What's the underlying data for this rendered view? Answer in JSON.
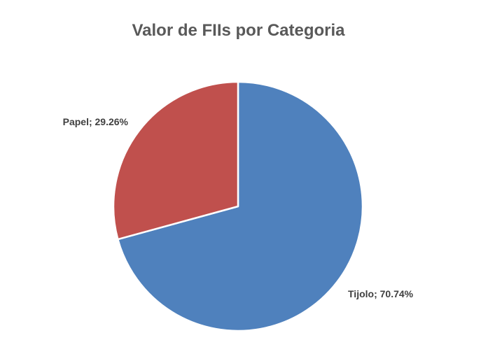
{
  "chart_data": {
    "type": "pie",
    "title": "Valor de FIIs por Categoria",
    "slices": [
      {
        "label": "Tijolo",
        "value": 70.74,
        "display": "Tijolo; 70.74%",
        "color": "#4F81BD"
      },
      {
        "label": "Papel",
        "value": 29.26,
        "display": "Papel; 29.26%",
        "color": "#C0504D"
      }
    ],
    "start_angle_deg": 0,
    "direction": "clockwise",
    "slice_border_color": "#FFFFFF",
    "legend": "none"
  }
}
